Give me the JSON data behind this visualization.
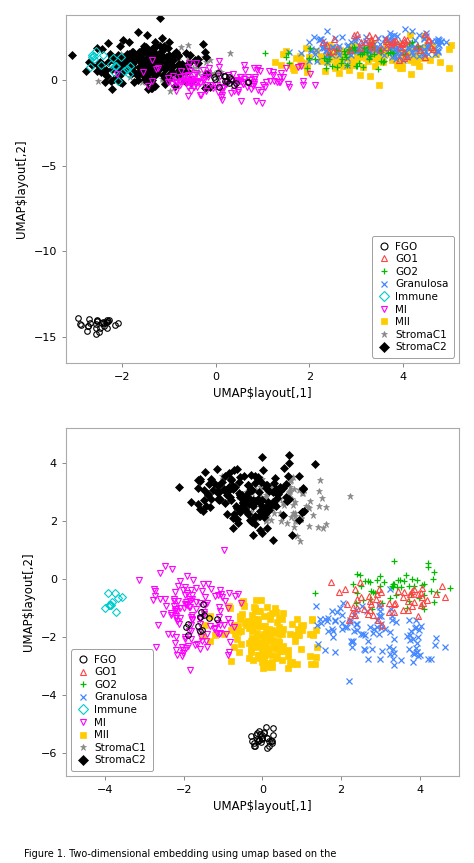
{
  "plot1": {
    "xlim": [
      -3.2,
      5.2
    ],
    "ylim": [
      -16.5,
      3.8
    ],
    "xlabel": "UMAP$layout[,1]",
    "ylabel": "UMAP$layout[,2]",
    "xticks": [
      -2,
      0,
      2,
      4
    ],
    "yticks": [
      -15,
      -10,
      -5,
      0
    ]
  },
  "plot2": {
    "xlim": [
      -5.0,
      5.0
    ],
    "ylim": [
      -6.8,
      5.2
    ],
    "xlabel": "UMAP$layout[,1]",
    "ylabel": "UMAP$layout[,2]",
    "xticks": [
      -4,
      -2,
      0,
      2,
      4
    ],
    "yticks": [
      -6,
      -4,
      -2,
      0,
      2,
      4
    ]
  },
  "categories": {
    "FGO": {
      "color": "#000000",
      "marker": "o",
      "mfc": "none",
      "ms": 4,
      "mew": 0.8
    },
    "GO1": {
      "color": "#FF4444",
      "marker": "^",
      "mfc": "none",
      "ms": 4,
      "mew": 0.8
    },
    "GO2": {
      "color": "#00BB00",
      "marker": "+",
      "mfc": "#00BB00",
      "ms": 5,
      "mew": 0.9
    },
    "Granulosa": {
      "color": "#4488FF",
      "marker": "x",
      "mfc": "#4488FF",
      "ms": 4,
      "mew": 0.9
    },
    "Immune": {
      "color": "#00CCCC",
      "marker": "D",
      "mfc": "none",
      "ms": 4,
      "mew": 0.8
    },
    "MI": {
      "color": "#FF00FF",
      "marker": "v",
      "mfc": "none",
      "ms": 4,
      "mew": 0.8
    },
    "MII": {
      "color": "#FFCC00",
      "marker": "s",
      "mfc": "#FFCC00",
      "ms": 4,
      "mew": 0.5
    },
    "StromaC1": {
      "color": "#888888",
      "marker": "*",
      "mfc": "#888888",
      "ms": 5,
      "mew": 0.5
    },
    "StromaC2": {
      "color": "#000000",
      "marker": "D",
      "mfc": "#000000",
      "ms": 4,
      "mew": 0.5
    }
  },
  "caption": "Figure 1. Two-dimensional embedding using umap based on the"
}
